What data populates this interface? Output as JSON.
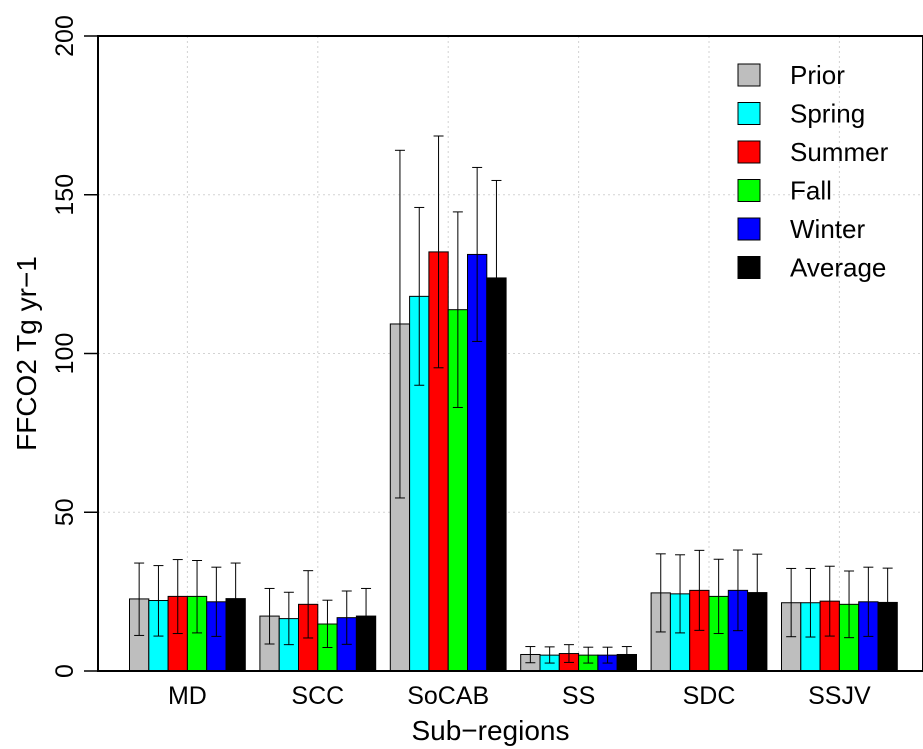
{
  "chart_data": {
    "type": "bar",
    "title": "",
    "xlabel": "Sub−regions",
    "ylabel": "FFCO2 Tg yr−1",
    "ylim": [
      0,
      200
    ],
    "yticks": [
      0,
      50,
      100,
      150,
      200
    ],
    "grid": true,
    "legend_position": "top-right",
    "categories": [
      "MD",
      "SCC",
      "SoCAB",
      "SS",
      "SDC",
      "SSJV"
    ],
    "series": [
      {
        "name": "Prior",
        "color": "#bebebe",
        "values": [
          22.7,
          17.3,
          109.3,
          5.2,
          24.6,
          21.5
        ],
        "err_low": [
          11.2,
          8.5,
          54.5,
          2.6,
          12.3,
          10.8
        ],
        "err_high": [
          34.0,
          26.0,
          164.0,
          7.7,
          36.9,
          32.3
        ]
      },
      {
        "name": "Spring",
        "color": "#00ffff",
        "values": [
          22.2,
          16.5,
          118.0,
          5.0,
          24.3,
          21.5
        ],
        "err_low": [
          11.0,
          8.3,
          90.0,
          2.5,
          12.0,
          10.7
        ],
        "err_high": [
          33.2,
          24.8,
          146.0,
          7.6,
          36.6,
          32.3
        ]
      },
      {
        "name": "Summer",
        "color": "#ff0000",
        "values": [
          23.5,
          21.0,
          132.0,
          5.5,
          25.4,
          22.0
        ],
        "err_low": [
          11.8,
          10.4,
          95.5,
          2.7,
          12.8,
          11.0
        ],
        "err_high": [
          35.1,
          31.6,
          168.5,
          8.3,
          38.0,
          33.0
        ]
      },
      {
        "name": "Fall",
        "color": "#00ff00",
        "values": [
          23.5,
          14.8,
          113.8,
          5.0,
          23.5,
          21.0
        ],
        "err_low": [
          12.0,
          7.4,
          83.0,
          2.5,
          11.8,
          10.5
        ],
        "err_high": [
          34.8,
          22.3,
          144.6,
          7.5,
          35.2,
          31.5
        ]
      },
      {
        "name": "Winter",
        "color": "#0000ff",
        "values": [
          21.8,
          16.8,
          131.2,
          5.0,
          25.4,
          21.8
        ],
        "err_low": [
          10.9,
          8.4,
          103.8,
          2.5,
          12.7,
          10.9
        ],
        "err_high": [
          32.7,
          25.2,
          158.6,
          7.5,
          38.1,
          32.7
        ]
      },
      {
        "name": "Average",
        "color": "#000000",
        "values": [
          22.8,
          17.3,
          123.8,
          5.2,
          24.7,
          21.6
        ],
        "err_low": [
          11.4,
          8.6,
          92.8,
          2.6,
          12.4,
          10.8
        ],
        "err_high": [
          34.0,
          26.0,
          154.5,
          7.7,
          36.8,
          32.4
        ]
      }
    ]
  }
}
